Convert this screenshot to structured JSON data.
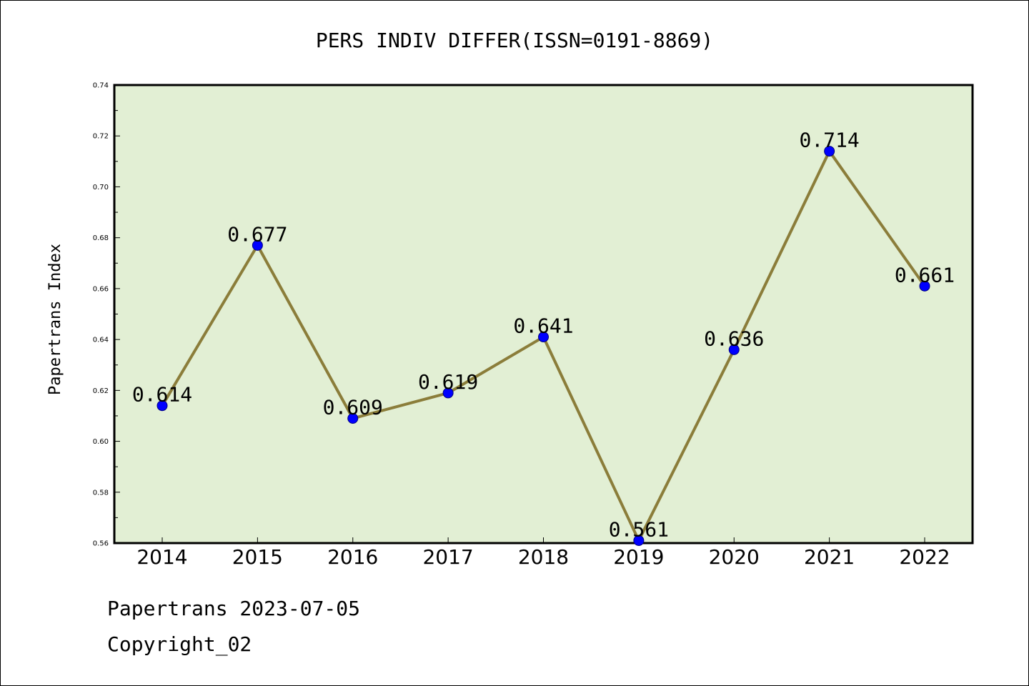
{
  "chart_data": {
    "type": "line",
    "title": "PERS INDIV DIFFER(ISSN=0191-8869)",
    "xlabel": "",
    "ylabel": "Papertrans Index",
    "categories": [
      "2014",
      "2015",
      "2016",
      "2017",
      "2018",
      "2019",
      "2020",
      "2021",
      "2022"
    ],
    "values": [
      0.614,
      0.677,
      0.609,
      0.619,
      0.641,
      0.561,
      0.636,
      0.714,
      0.661
    ],
    "data_labels": [
      "0.614",
      "0.677",
      "0.609",
      "0.619",
      "0.641",
      "0.561",
      "0.636",
      "0.714",
      "0.661"
    ],
    "ylim": [
      0.56,
      0.74
    ],
    "yticks": [
      "0.56",
      "0.58",
      "0.60",
      "0.62",
      "0.64",
      "0.66",
      "0.68",
      "0.70",
      "0.72",
      "0.74"
    ],
    "grid": false,
    "colors": {
      "plot_background": "#e2efd4",
      "line": "#8b7d3a",
      "marker": "#0000ff",
      "marker_edge": "#000080"
    }
  },
  "footer": {
    "line1": "Papertrans 2023-07-05",
    "line2": "Copyright_02"
  }
}
